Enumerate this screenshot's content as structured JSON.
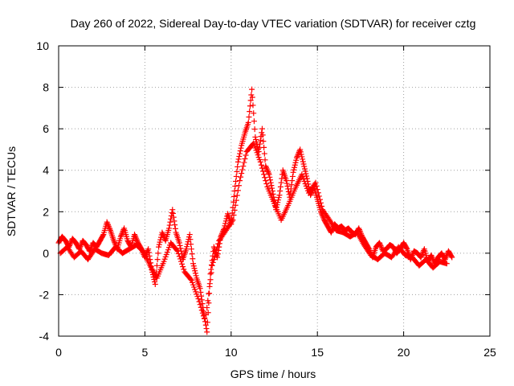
{
  "chart_data": {
    "type": "scatter",
    "title": "Day 260 of 2022, Sidereal Day-to-day VTEC variation (SDTVAR) for receiver cztg",
    "xlabel": "GPS time / hours",
    "ylabel": "SDTVAR / TECUs",
    "xlim": [
      0,
      25
    ],
    "ylim": [
      -4,
      10
    ],
    "x_ticks": [
      0,
      5,
      10,
      15,
      20,
      25
    ],
    "y_ticks": [
      -4,
      -2,
      0,
      2,
      4,
      6,
      8,
      10
    ],
    "x_tick_labels": [
      "0",
      "5",
      "10",
      "15",
      "20",
      "25"
    ],
    "y_tick_labels": [
      "-4",
      "-2",
      "0",
      "2",
      "4",
      "6",
      "8",
      "10"
    ],
    "grid": true,
    "marker": "plus",
    "color": "#ff0000",
    "series": [
      {
        "name": "SDTVAR",
        "x": [
          0.0,
          0.2,
          0.4,
          0.6,
          0.8,
          1.0,
          1.2,
          1.4,
          1.6,
          1.8,
          2.0,
          2.2,
          2.4,
          2.6,
          2.8,
          3.0,
          3.2,
          3.4,
          3.6,
          3.8,
          4.0,
          4.2,
          4.4,
          4.6,
          4.8,
          5.0,
          5.2,
          5.4,
          5.6,
          5.8,
          6.0,
          6.2,
          6.4,
          6.6,
          6.8,
          7.0,
          7.2,
          7.4,
          7.6,
          7.8,
          8.0,
          8.2,
          8.4,
          8.6,
          8.8,
          9.0,
          9.2,
          9.4,
          9.6,
          9.8,
          10.0,
          10.2,
          10.4,
          10.6,
          10.8,
          11.0,
          11.2,
          11.4,
          11.6,
          11.8,
          12.0,
          12.2,
          12.4,
          12.6,
          12.8,
          13.0,
          13.2,
          13.4,
          13.6,
          13.8,
          14.0,
          14.2,
          14.4,
          14.6,
          14.8,
          15.0,
          15.2,
          15.4,
          15.6,
          15.8,
          16.0,
          16.2,
          16.4,
          16.6,
          16.8,
          17.0,
          17.2,
          17.4,
          17.6,
          17.8,
          18.0,
          18.2,
          18.4,
          18.6,
          18.8,
          19.0,
          19.2,
          19.4,
          19.6,
          19.8,
          20.0,
          20.2,
          20.4,
          20.6,
          20.8,
          21.0,
          21.2,
          21.4,
          21.6,
          21.8,
          22.0,
          22.2,
          22.4,
          22.6,
          22.8
        ],
        "y": [
          0.5,
          0.8,
          0.6,
          0.3,
          0.7,
          0.5,
          0.2,
          0.6,
          0.4,
          0.1,
          0.5,
          0.3,
          0.6,
          0.9,
          1.5,
          1.1,
          0.6,
          0.2,
          0.8,
          1.2,
          0.6,
          0.3,
          0.9,
          0.5,
          0.2,
          -0.2,
          0.2,
          -0.8,
          -1.5,
          0.3,
          1.0,
          0.6,
          1.2,
          2.1,
          1.0,
          0.5,
          -0.3,
          0.2,
          0.9,
          -0.5,
          -1.2,
          -1.7,
          -2.8,
          -3.8,
          -1.0,
          0.3,
          -0.2,
          0.8,
          1.2,
          1.9,
          1.4,
          3.0,
          4.4,
          5.2,
          5.8,
          6.3,
          7.9,
          5.6,
          4.9,
          6.0,
          4.2,
          3.8,
          3.0,
          2.1,
          2.8,
          4.0,
          3.5,
          2.7,
          3.9,
          4.6,
          5.0,
          4.3,
          3.6,
          2.8,
          3.2,
          2.6,
          2.0,
          1.6,
          1.3,
          1.0,
          1.4,
          1.2,
          1.3,
          1.1,
          1.2,
          1.0,
          0.9,
          1.2,
          0.8,
          0.5,
          0.2,
          -0.2,
          0.3,
          0.5,
          0.1,
          0.2,
          0.4,
          0.3,
          0.0,
          0.2,
          0.5,
          0.2,
          -0.3,
          0.1,
          0.0,
          -0.2,
          0.2,
          -0.4,
          -0.1,
          -0.5,
          -0.2,
          0.0,
          -0.3,
          0.1,
          -0.2
        ],
        "x_alt": [
          0.1,
          0.5,
          0.9,
          1.3,
          1.7,
          2.1,
          2.5,
          2.9,
          3.3,
          3.7,
          4.1,
          4.5,
          4.9,
          5.3,
          5.7,
          6.1,
          6.5,
          6.9,
          7.3,
          7.7,
          8.1,
          8.5,
          8.9,
          9.3,
          9.7,
          10.1,
          10.5,
          10.9,
          11.3,
          11.7,
          12.1,
          12.5,
          12.9,
          13.3,
          13.7,
          14.1,
          14.5,
          14.9,
          15.3,
          15.7,
          16.1,
          16.5,
          16.9,
          17.3,
          17.7,
          18.1,
          18.5,
          18.9,
          19.3,
          19.7,
          20.1,
          20.5,
          20.9,
          21.3,
          21.7,
          22.1,
          22.5
        ],
        "y_alt": [
          0.0,
          0.3,
          -0.2,
          0.1,
          -0.3,
          0.2,
          0.0,
          -0.1,
          0.3,
          0.0,
          0.2,
          0.4,
          0.1,
          -0.6,
          -1.2,
          -0.4,
          0.5,
          0.1,
          -0.9,
          -1.3,
          -2.2,
          -3.3,
          -0.6,
          0.6,
          1.1,
          1.6,
          3.5,
          4.9,
          5.3,
          4.4,
          3.2,
          2.4,
          1.6,
          2.3,
          3.1,
          3.8,
          2.9,
          3.4,
          2.1,
          1.6,
          1.1,
          1.0,
          0.8,
          1.0,
          0.4,
          -0.1,
          -0.3,
          0.0,
          -0.2,
          0.3,
          -0.1,
          -0.2,
          -0.6,
          -0.3,
          -0.7,
          -0.4,
          -0.5
        ]
      }
    ]
  }
}
